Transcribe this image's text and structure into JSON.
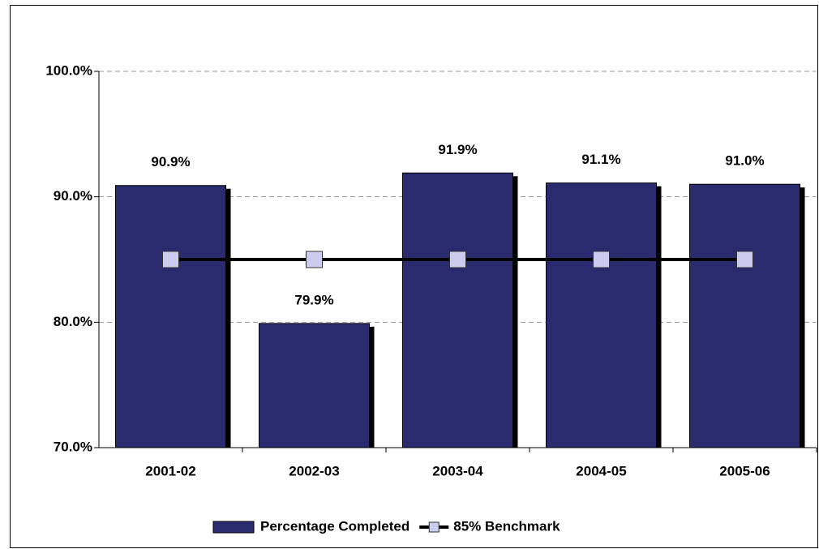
{
  "chart_data": {
    "type": "bar",
    "categories": [
      "2001-02",
      "2002-03",
      "2003-04",
      "2004-05",
      "2005-06"
    ],
    "series": [
      {
        "name": "Percentage Completed",
        "type": "bar",
        "color": "#2a2a6e",
        "values": [
          90.9,
          79.9,
          91.9,
          91.1,
          91.0
        ],
        "value_labels": [
          "90.9%",
          "79.9%",
          "91.9%",
          "91.1%",
          "91.0%"
        ]
      },
      {
        "name": "85% Benchmark",
        "type": "line",
        "color": "#000000",
        "marker_color": "#ccccee",
        "values": [
          85,
          85,
          85,
          85,
          85
        ]
      }
    ],
    "ylim": [
      70,
      100
    ],
    "yticks": [
      {
        "value": 70,
        "label": "70.0%"
      },
      {
        "value": 80,
        "label": "80.0%"
      },
      {
        "value": 90,
        "label": "90.0%"
      },
      {
        "value": 100,
        "label": "100.0%"
      }
    ],
    "grid": true,
    "legend": "bottom"
  }
}
